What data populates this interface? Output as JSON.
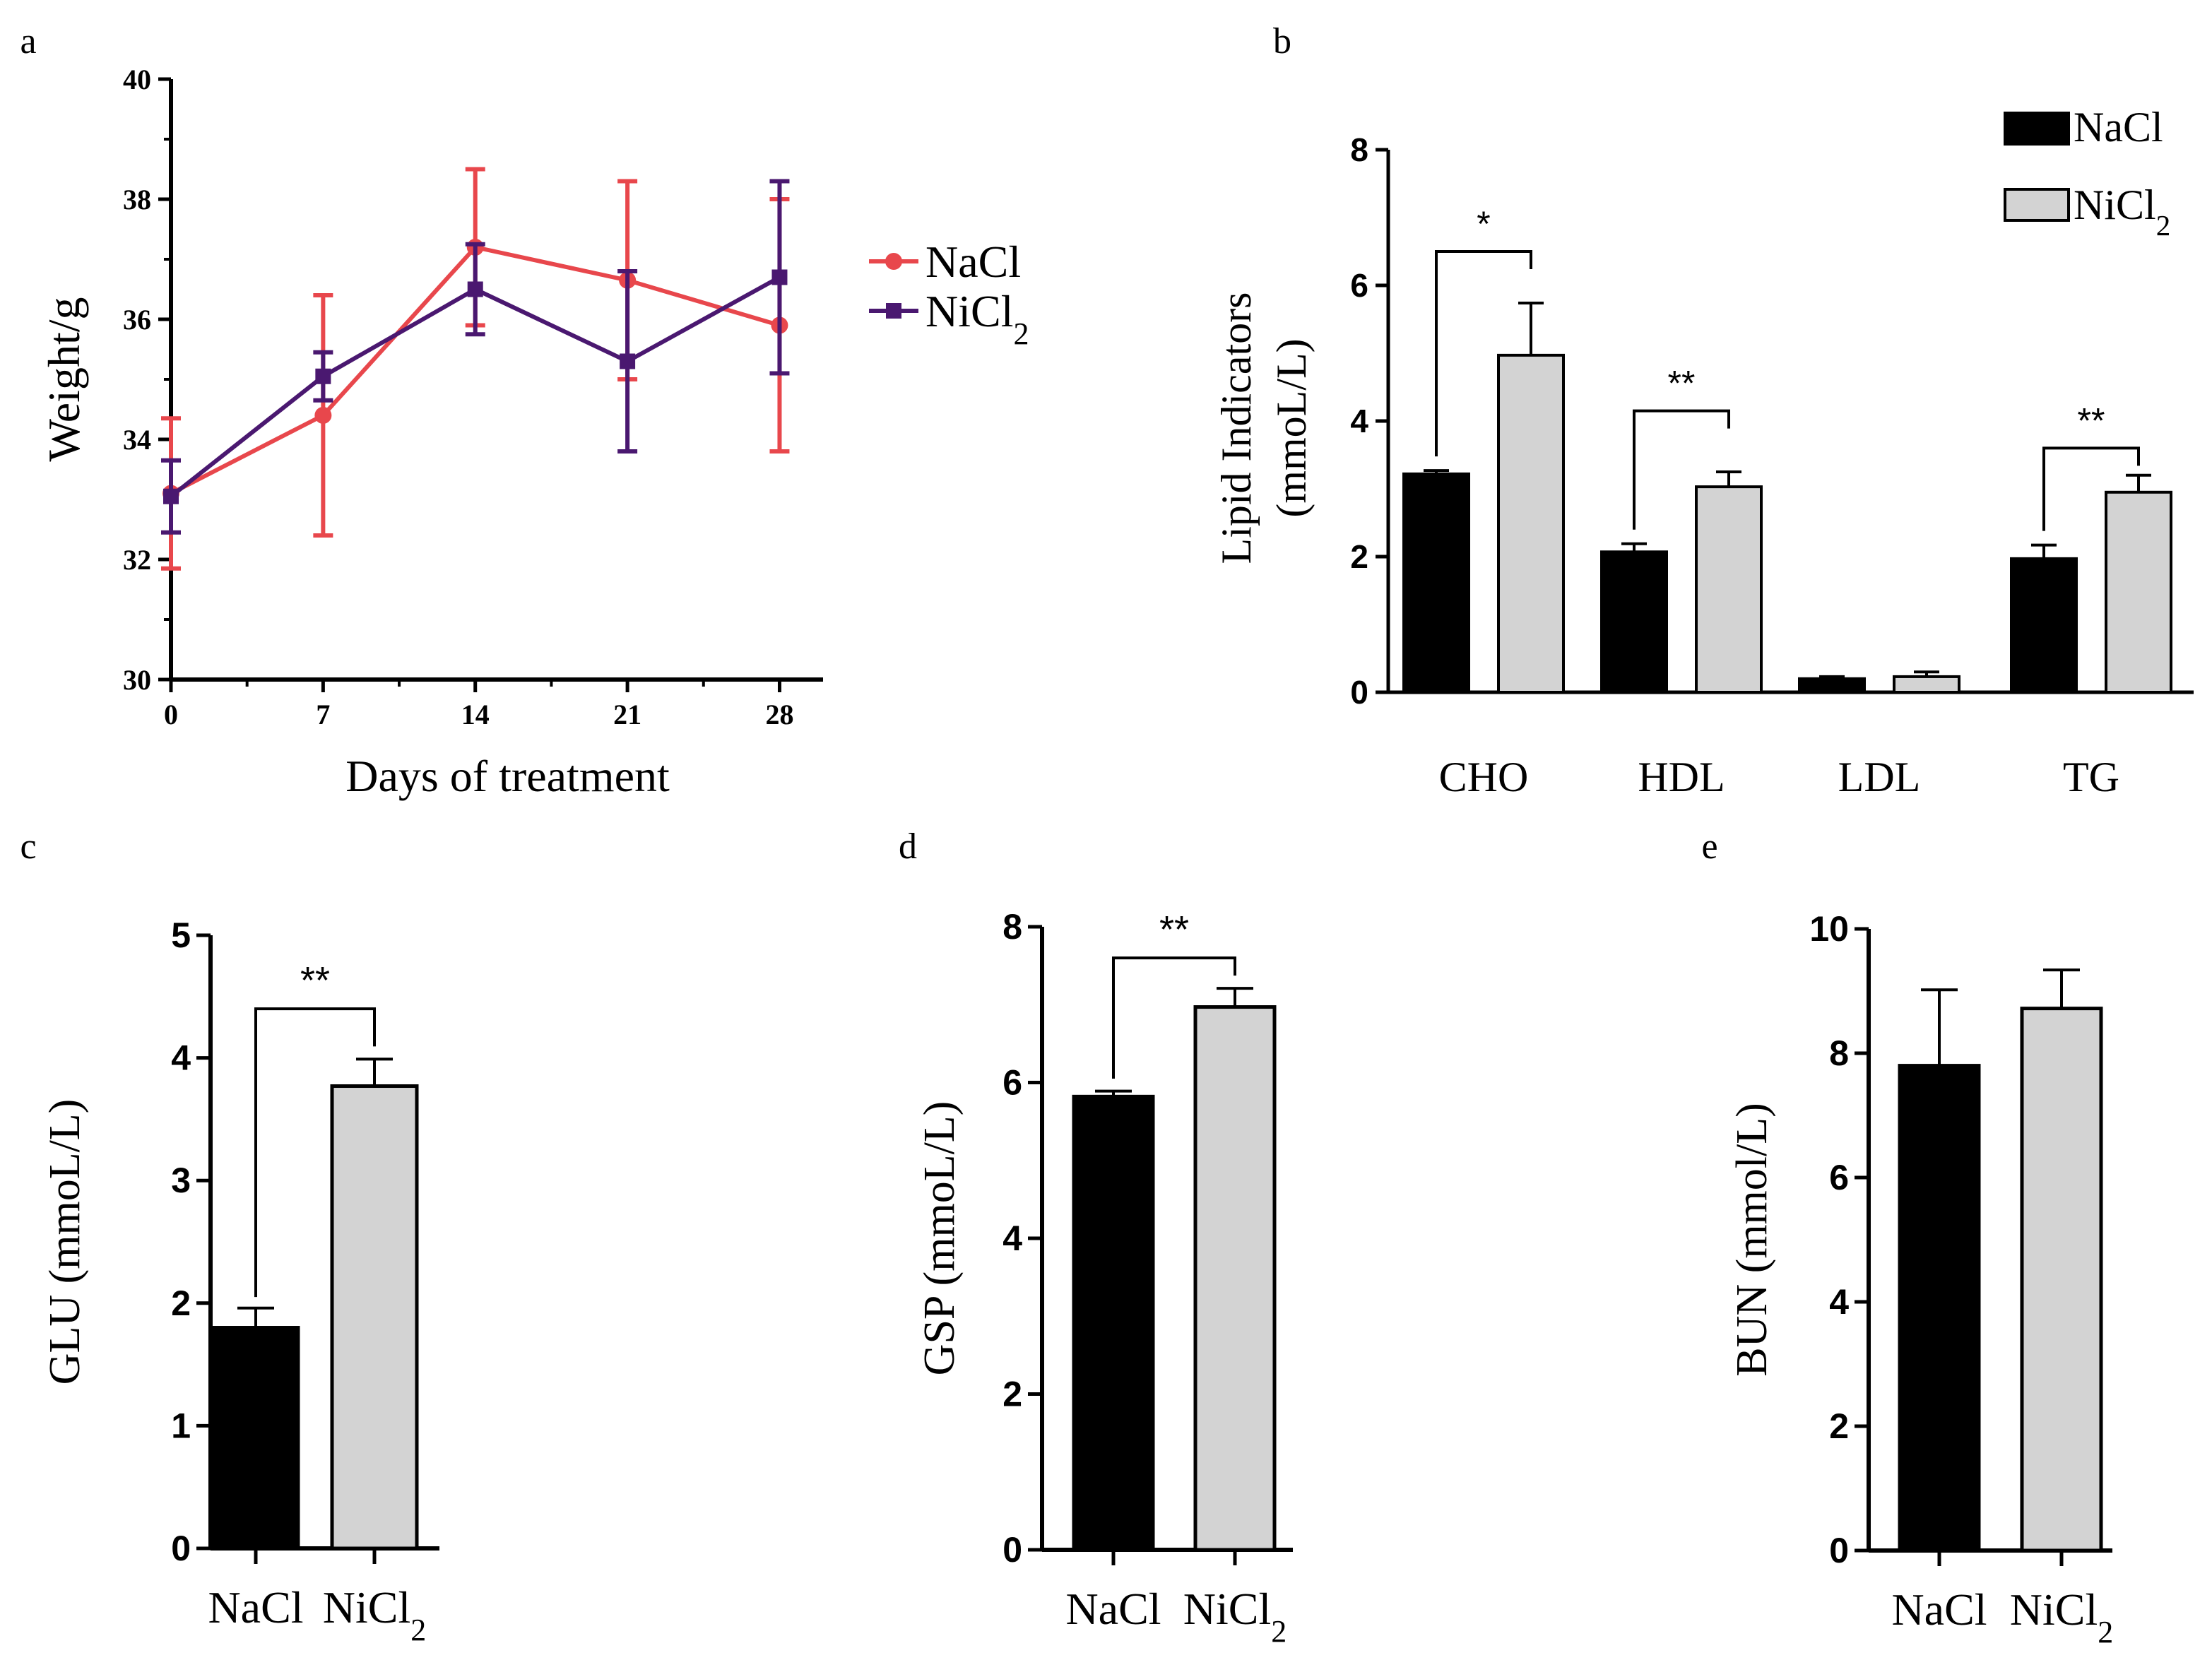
{
  "colors": {
    "nacl_line": "#e8474c",
    "nicl2_line": "#4a1870",
    "bar_nacl": "#000000",
    "bar_nicl2": "#d3d3d3",
    "axis": "#000000"
  },
  "chart_data": [
    {
      "id": "a",
      "panel_label": "a",
      "type": "line",
      "title": "",
      "xlabel": "Days of treatment",
      "ylabel": "Weight/g",
      "x": [
        0,
        7,
        14,
        21,
        28
      ],
      "x_tick_labels": [
        "0",
        "7",
        "14",
        "21",
        "28"
      ],
      "xlim": [
        0,
        30
      ],
      "ylim": [
        30,
        40
      ],
      "y_ticks": [
        30,
        32,
        34,
        36,
        38,
        40
      ],
      "y_tick_labels": [
        "30",
        "32",
        "34",
        "36",
        "38",
        "40"
      ],
      "legend_position": "right",
      "series": [
        {
          "name": "NaCl",
          "legend_label": "NaCl",
          "values": [
            33.1,
            34.4,
            37.2,
            36.65,
            35.9
          ],
          "errors": [
            1.25,
            2.0,
            1.3,
            1.65,
            2.1
          ]
        },
        {
          "name": "NiCl2",
          "legend_label": "NiCl",
          "legend_sub": "2",
          "values": [
            33.05,
            35.05,
            36.5,
            35.3,
            36.7
          ],
          "errors": [
            0.6,
            0.4,
            0.75,
            1.5,
            1.6
          ]
        }
      ]
    },
    {
      "id": "b",
      "panel_label": "b",
      "type": "bar",
      "xlabel": "",
      "ylabel": [
        "Lipid Indicators",
        "(mmoL/L)"
      ],
      "categories": [
        "CHO",
        "HDL",
        "LDL",
        "TG"
      ],
      "ylim": [
        0,
        8
      ],
      "y_ticks": [
        0,
        2,
        4,
        6,
        8
      ],
      "y_tick_labels": [
        "0",
        "2",
        "4",
        "6",
        "8"
      ],
      "legend_position": "top-right",
      "series": [
        {
          "name": "NaCl",
          "legend_label": "NaCl",
          "values": [
            3.22,
            2.07,
            0.2,
            1.97
          ],
          "errors": [
            0.05,
            0.12,
            0.03,
            0.2
          ]
        },
        {
          "name": "NiCl2",
          "legend_label": "NiCl",
          "legend_sub": "2",
          "values": [
            4.97,
            3.03,
            0.23,
            2.95
          ],
          "errors": [
            0.77,
            0.22,
            0.07,
            0.25
          ]
        }
      ],
      "significance": [
        {
          "category": "CHO",
          "label": "*",
          "y": 6.5
        },
        {
          "category": "HDL",
          "label": "**",
          "y": 4.15
        },
        {
          "category": "TG",
          "label": "**",
          "y": 3.6
        }
      ]
    },
    {
      "id": "c",
      "panel_label": "c",
      "type": "bar",
      "xlabel": "",
      "ylabel": "GLU (mmoL/L)",
      "categories": [
        "NaCl",
        "NiCl2"
      ],
      "category_labels": [
        {
          "text": "NaCl",
          "sub": ""
        },
        {
          "text": "NiCl",
          "sub": "2"
        }
      ],
      "ylim": [
        0,
        5
      ],
      "y_ticks": [
        0,
        1,
        2,
        3,
        4,
        5
      ],
      "y_tick_labels": [
        "0",
        "1",
        "2",
        "3",
        "4",
        "5"
      ],
      "values": [
        1.8,
        3.77
      ],
      "errors": [
        0.16,
        0.22
      ],
      "significance": [
        {
          "label": "**",
          "y": 4.4,
          "from_y": 2.05
        }
      ]
    },
    {
      "id": "d",
      "panel_label": "d",
      "type": "bar",
      "xlabel": "",
      "ylabel": "GSP (mmoL/L)",
      "categories": [
        "NaCl",
        "NiCl2"
      ],
      "category_labels": [
        {
          "text": "NaCl",
          "sub": ""
        },
        {
          "text": "NiCl",
          "sub": "2"
        }
      ],
      "ylim": [
        0,
        8
      ],
      "y_ticks": [
        0,
        2,
        4,
        6,
        8
      ],
      "y_tick_labels": [
        "0",
        "2",
        "4",
        "6",
        "8"
      ],
      "values": [
        5.82,
        6.97
      ],
      "errors": [
        0.07,
        0.24
      ],
      "significance": [
        {
          "label": "**",
          "y": 7.6,
          "from_y": 6.05
        }
      ]
    },
    {
      "id": "e",
      "panel_label": "e",
      "type": "bar",
      "xlabel": "",
      "ylabel": "BUN (mmol/L)",
      "categories": [
        "NaCl",
        "NiCl2"
      ],
      "category_labels": [
        {
          "text": "NaCl",
          "sub": ""
        },
        {
          "text": "NiCl",
          "sub": "2"
        }
      ],
      "ylim": [
        0,
        10
      ],
      "y_ticks": [
        0,
        2,
        4,
        6,
        8,
        10
      ],
      "y_tick_labels": [
        "0",
        "2",
        "4",
        "6",
        "8",
        "10"
      ],
      "values": [
        7.8,
        8.72
      ],
      "errors": [
        1.22,
        0.62
      ],
      "significance": []
    }
  ]
}
